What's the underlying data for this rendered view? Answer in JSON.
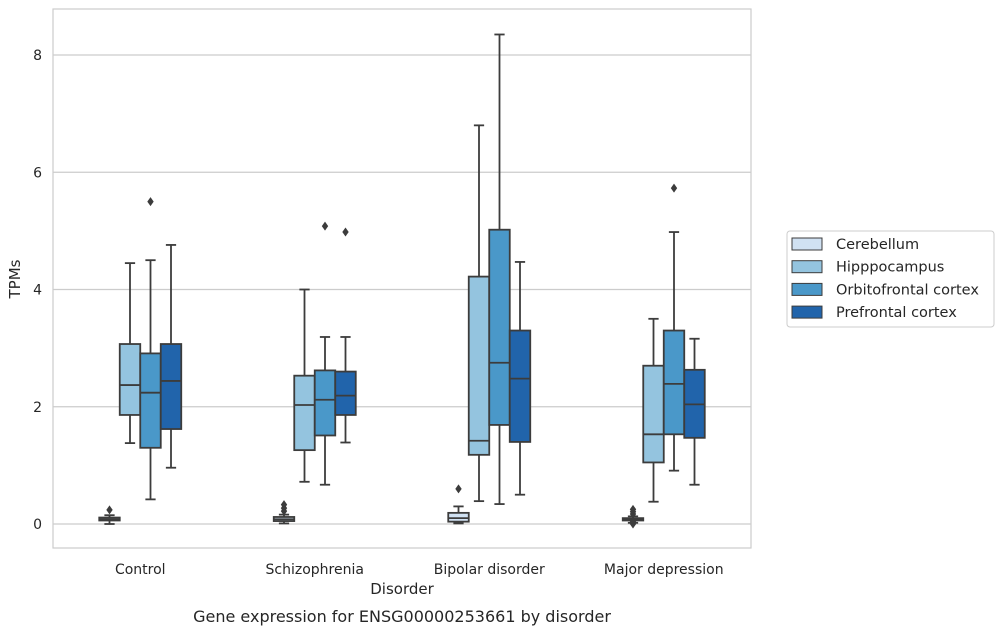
{
  "chart_data": {
    "type": "boxplot",
    "title": "",
    "caption": "Gene expression for ENSG00000253661 by disorder",
    "xlabel": "Disorder",
    "ylabel": "TPMs",
    "ylim": [
      -0.4,
      8.8
    ],
    "yticks": [
      0,
      2,
      4,
      6,
      8
    ],
    "grid": "horizontal",
    "legend_position": "right",
    "categories": [
      "Control",
      "Schizophrenia",
      "Bipolar disorder",
      "Major depression"
    ],
    "series": [
      {
        "name": "Cerebellum",
        "color": "#d0e1f2",
        "boxes": [
          {
            "whisker_low": 0.0,
            "q1": 0.06,
            "median": 0.08,
            "q3": 0.11,
            "whisker_high": 0.15,
            "outliers": [
              0.24
            ]
          },
          {
            "whisker_low": 0.01,
            "q1": 0.05,
            "median": 0.08,
            "q3": 0.12,
            "whisker_high": 0.16,
            "outliers": [
              0.22,
              0.27,
              0.33
            ]
          },
          {
            "whisker_low": 0.01,
            "q1": 0.04,
            "median": 0.1,
            "q3": 0.19,
            "whisker_high": 0.3,
            "outliers": [
              0.6
            ]
          },
          {
            "whisker_low": 0.02,
            "q1": 0.06,
            "median": 0.08,
            "q3": 0.1,
            "whisker_high": 0.13,
            "outliers": [
              0.0,
              0.04,
              0.17,
              0.21,
              0.25
            ]
          }
        ]
      },
      {
        "name": "Hipppocampus",
        "color": "#94c4df",
        "boxes": [
          {
            "whisker_low": 1.38,
            "q1": 1.86,
            "median": 2.37,
            "q3": 3.07,
            "whisker_high": 4.45,
            "outliers": []
          },
          {
            "whisker_low": 0.72,
            "q1": 1.26,
            "median": 2.03,
            "q3": 2.53,
            "whisker_high": 4.0,
            "outliers": []
          },
          {
            "whisker_low": 0.39,
            "q1": 1.18,
            "median": 1.42,
            "q3": 4.22,
            "whisker_high": 6.8,
            "outliers": []
          },
          {
            "whisker_low": 0.38,
            "q1": 1.05,
            "median": 1.53,
            "q3": 2.7,
            "whisker_high": 3.5,
            "outliers": []
          }
        ]
      },
      {
        "name": "Orbitofrontal cortex",
        "color": "#4a98c9",
        "boxes": [
          {
            "whisker_low": 0.42,
            "q1": 1.3,
            "median": 2.24,
            "q3": 2.91,
            "whisker_high": 4.5,
            "outliers": [
              5.5
            ]
          },
          {
            "whisker_low": 0.67,
            "q1": 1.51,
            "median": 2.12,
            "q3": 2.62,
            "whisker_high": 3.19,
            "outliers": [
              5.08
            ]
          },
          {
            "whisker_low": 0.34,
            "q1": 1.69,
            "median": 2.75,
            "q3": 5.02,
            "whisker_high": 8.35,
            "outliers": []
          },
          {
            "whisker_low": 0.91,
            "q1": 1.53,
            "median": 2.39,
            "q3": 3.3,
            "whisker_high": 4.98,
            "outliers": [
              5.73
            ]
          }
        ]
      },
      {
        "name": "Prefrontal cortex",
        "color": "#2164ab",
        "boxes": [
          {
            "whisker_low": 0.96,
            "q1": 1.62,
            "median": 2.44,
            "q3": 3.07,
            "whisker_high": 4.76,
            "outliers": []
          },
          {
            "whisker_low": 1.39,
            "q1": 1.86,
            "median": 2.19,
            "q3": 2.6,
            "whisker_high": 3.19,
            "outliers": [
              4.98
            ]
          },
          {
            "whisker_low": 0.5,
            "q1": 1.4,
            "median": 2.48,
            "q3": 3.3,
            "whisker_high": 4.47,
            "outliers": []
          },
          {
            "whisker_low": 0.67,
            "q1": 1.47,
            "median": 2.04,
            "q3": 2.63,
            "whisker_high": 3.16,
            "outliers": []
          }
        ]
      }
    ]
  }
}
